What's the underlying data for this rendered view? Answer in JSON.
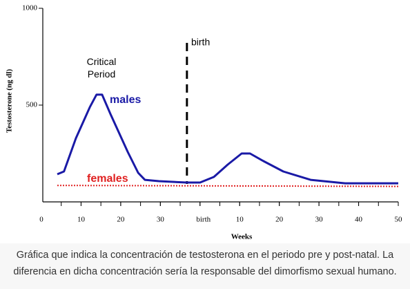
{
  "chart_data": {
    "type": "line",
    "ylabel": "Testosterone (ng dl)",
    "xlabel": "Weeks",
    "xlim": [
      0,
      90
    ],
    "ylim": [
      0,
      1000
    ],
    "xticks": [
      0,
      10,
      20,
      30,
      {
        "value": 40,
        "label": "birth"
      },
      {
        "value": 50,
        "label": "10"
      },
      {
        "value": 60,
        "label": "20"
      },
      {
        "value": 70,
        "label": "30"
      },
      {
        "value": 80,
        "label": "40"
      },
      {
        "value": 90,
        "label": "50"
      }
    ],
    "yticks": [
      500,
      1000
    ],
    "series": [
      {
        "name": "males",
        "color": "#1a1aa6",
        "x": [
          4,
          5.7,
          8.7,
          12.2,
          13.9,
          15.3,
          17.4,
          21.8,
          24.4,
          26.1,
          29.6,
          36.6,
          40,
          43.5,
          47,
          50.5,
          52.6,
          55.7,
          61,
          67.9,
          76.6,
          90
        ],
        "values": [
          143,
          157,
          329,
          489,
          554,
          554,
          454,
          257,
          150,
          114,
          107,
          100,
          100,
          129,
          193,
          250,
          250,
          214,
          157,
          114,
          96,
          96
        ]
      },
      {
        "name": "females",
        "color": "#e02020",
        "x": [
          4,
          90
        ],
        "values": [
          85,
          80
        ]
      }
    ],
    "annotations": [
      {
        "text": "birth",
        "x": 36.7
      },
      {
        "text": "Critical Period"
      }
    ],
    "caption": "Gráfica que indica la concentración de testosterona en el periodo pre y post-natal. La diferencia en dicha concentración sería la responsable del dimorfismo sexual humano."
  }
}
